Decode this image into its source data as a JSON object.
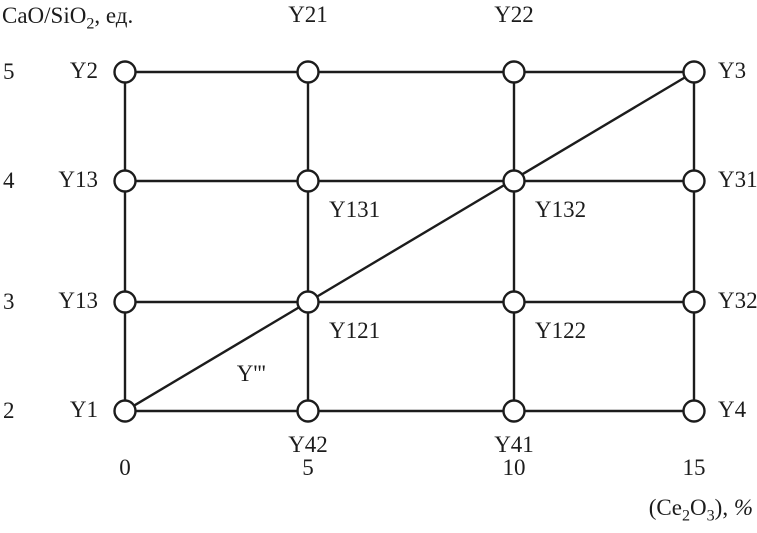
{
  "chart_data": {
    "type": "scatter",
    "title": "",
    "ylabel_text": "CaO/SiO2, ед.",
    "xlabel_text": "(Ce2O3), %",
    "ylabel_segments": [
      {
        "t": "CaO/SiO"
      },
      {
        "t": "2",
        "sub": true
      },
      {
        "t": ", ед."
      }
    ],
    "xlabel_segments": [
      {
        "t": "(Ce"
      },
      {
        "t": "2",
        "sub": true
      },
      {
        "t": "O"
      },
      {
        "t": "3",
        "sub": true
      },
      {
        "t": "), "
      },
      {
        "t": "%",
        "italic": true
      }
    ],
    "x_range": [
      0,
      15
    ],
    "y_range": [
      2,
      5
    ],
    "x_ticks": [
      "0",
      "5",
      "10",
      "15"
    ],
    "y_ticks": [
      "5",
      "4",
      "3",
      "2"
    ],
    "grid_x_values": [
      0,
      5,
      10,
      15
    ],
    "grid_y_values": [
      5,
      4,
      3,
      2
    ],
    "legend": "none",
    "grid": "full-lattice",
    "points": [
      {
        "x": 0,
        "y": 5,
        "label": "Y2",
        "label_pos": "left"
      },
      {
        "x": 5,
        "y": 5,
        "label": "Y21",
        "label_pos": "top"
      },
      {
        "x": 10,
        "y": 5,
        "label": "Y22",
        "label_pos": "top"
      },
      {
        "x": 15,
        "y": 5,
        "label": "Y3",
        "label_pos": "right"
      },
      {
        "x": 0,
        "y": 4,
        "label": "Y13",
        "label_pos": "left"
      },
      {
        "x": 5,
        "y": 4,
        "label": "Y131",
        "label_pos": "below-right"
      },
      {
        "x": 10,
        "y": 4,
        "label": "Y132",
        "label_pos": "below-right"
      },
      {
        "x": 15,
        "y": 4,
        "label": "Y31",
        "label_pos": "right"
      },
      {
        "x": 0,
        "y": 3,
        "label": "Y13",
        "label_pos": "left"
      },
      {
        "x": 5,
        "y": 3,
        "label": "Y121",
        "label_pos": "below-right"
      },
      {
        "x": 10,
        "y": 3,
        "label": "Y122",
        "label_pos": "below-right"
      },
      {
        "x": 15,
        "y": 3,
        "label": "Y32",
        "label_pos": "right"
      },
      {
        "x": 0,
        "y": 2,
        "label": "Y1",
        "label_pos": "left"
      },
      {
        "x": 5,
        "y": 2,
        "label": "Y42",
        "label_pos": "below"
      },
      {
        "x": 10,
        "y": 2,
        "label": "Y41",
        "label_pos": "below"
      },
      {
        "x": 15,
        "y": 2,
        "label": "Y4",
        "label_pos": "right"
      }
    ],
    "diagonal": {
      "from": {
        "x": 0,
        "y": 2
      },
      "to": {
        "x": 15,
        "y": 5
      },
      "label": "Y'''",
      "label_anchor": {
        "x": 3.45,
        "y": 2.34
      }
    },
    "colors": {
      "stroke": "#1c1c1c",
      "node_fill": "#ffffff",
      "background": "#ffffff"
    }
  }
}
